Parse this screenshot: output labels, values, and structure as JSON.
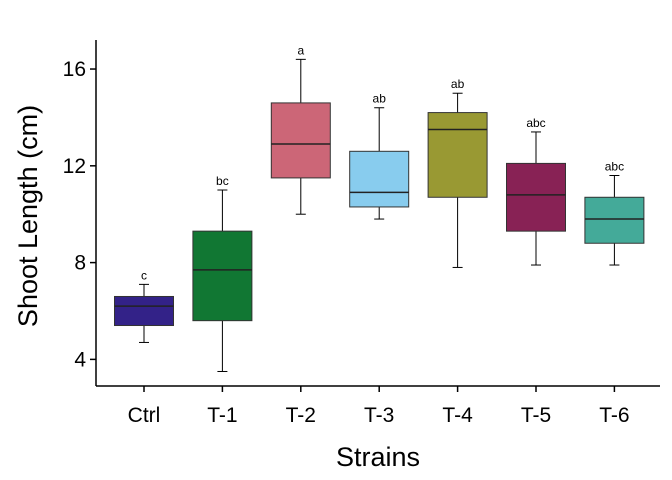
{
  "chart_data": {
    "type": "box",
    "xlabel": "Strains",
    "ylabel": "Shoot Length (cm)",
    "ylim": [
      2.9,
      17.2
    ],
    "yticks": [
      4,
      8,
      12,
      16
    ],
    "grid": false,
    "legend": "none",
    "categories": [
      "Ctrl",
      "T-1",
      "T-2",
      "T-3",
      "T-4",
      "T-5",
      "T-6"
    ],
    "boxes": [
      {
        "category": "Ctrl",
        "min": 4.7,
        "q1": 5.4,
        "median": 6.2,
        "q3": 6.6,
        "max": 7.1,
        "label": "c",
        "color": "#332288"
      },
      {
        "category": "T-1",
        "min": 3.5,
        "q1": 5.6,
        "median": 7.7,
        "q3": 9.3,
        "max": 11.0,
        "label": "bc",
        "color": "#117733"
      },
      {
        "category": "T-2",
        "min": 10.0,
        "q1": 11.5,
        "median": 12.9,
        "q3": 14.6,
        "max": 16.4,
        "label": "a",
        "color": "#CC6677"
      },
      {
        "category": "T-3",
        "min": 9.8,
        "q1": 10.3,
        "median": 10.9,
        "q3": 12.6,
        "max": 14.4,
        "label": "ab",
        "color": "#88CCEE"
      },
      {
        "category": "T-4",
        "min": 7.8,
        "q1": 10.7,
        "median": 13.5,
        "q3": 14.2,
        "max": 15.0,
        "label": "ab",
        "color": "#999933"
      },
      {
        "category": "T-5",
        "min": 7.9,
        "q1": 9.3,
        "median": 10.8,
        "q3": 12.1,
        "max": 13.4,
        "label": "abc",
        "color": "#882255"
      },
      {
        "category": "T-6",
        "min": 7.9,
        "q1": 8.8,
        "median": 9.8,
        "q3": 10.7,
        "max": 11.6,
        "label": "abc",
        "color": "#44AA99"
      }
    ]
  }
}
